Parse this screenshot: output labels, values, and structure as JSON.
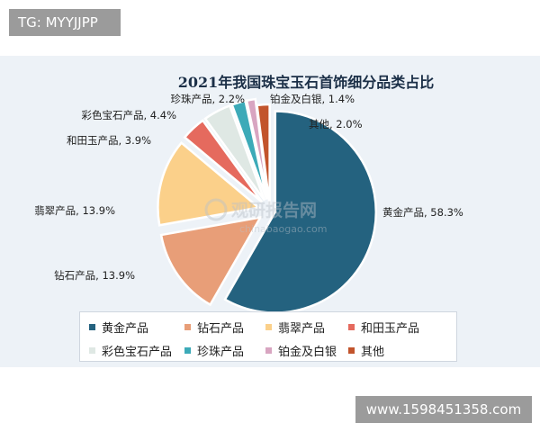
{
  "tg_badge": "TG: MYYJJPP",
  "watermark": {
    "brand": "观研报告网",
    "url": "chinabaogao.com"
  },
  "ad_badge": "www.1598451358.com",
  "chart_data": {
    "type": "pie",
    "title": "2021年我国珠宝玉石首饰细分品类占比",
    "legend_position": "bottom",
    "slices": [
      {
        "name": "黄金产品",
        "value": 58.3,
        "label": "黄金产品, 58.3%",
        "color": "#24627f"
      },
      {
        "name": "钻石产品",
        "value": 13.9,
        "label": "钻石产品, 13.9%",
        "color": "#e89e78"
      },
      {
        "name": "翡翠产品",
        "value": 13.9,
        "label": "翡翠产品, 13.9%",
        "color": "#fbd08a"
      },
      {
        "name": "和田玉产品",
        "value": 3.9,
        "label": "和田玉产品, 3.9%",
        "color": "#e56a5e"
      },
      {
        "name": "彩色宝石产品",
        "value": 4.4,
        "label": "彩色宝石产品, 4.4%",
        "color": "#dfe8e4"
      },
      {
        "name": "珍珠产品",
        "value": 2.2,
        "label": "珍珠产品, 2.2%",
        "color": "#3caab8"
      },
      {
        "name": "铂金及白银",
        "value": 1.4,
        "label": "铂金及白银, 1.4%",
        "color": "#d8a5c1"
      },
      {
        "name": "其他",
        "value": 2.0,
        "label": "其他, 2.0%",
        "color": "#c2542c"
      }
    ]
  }
}
